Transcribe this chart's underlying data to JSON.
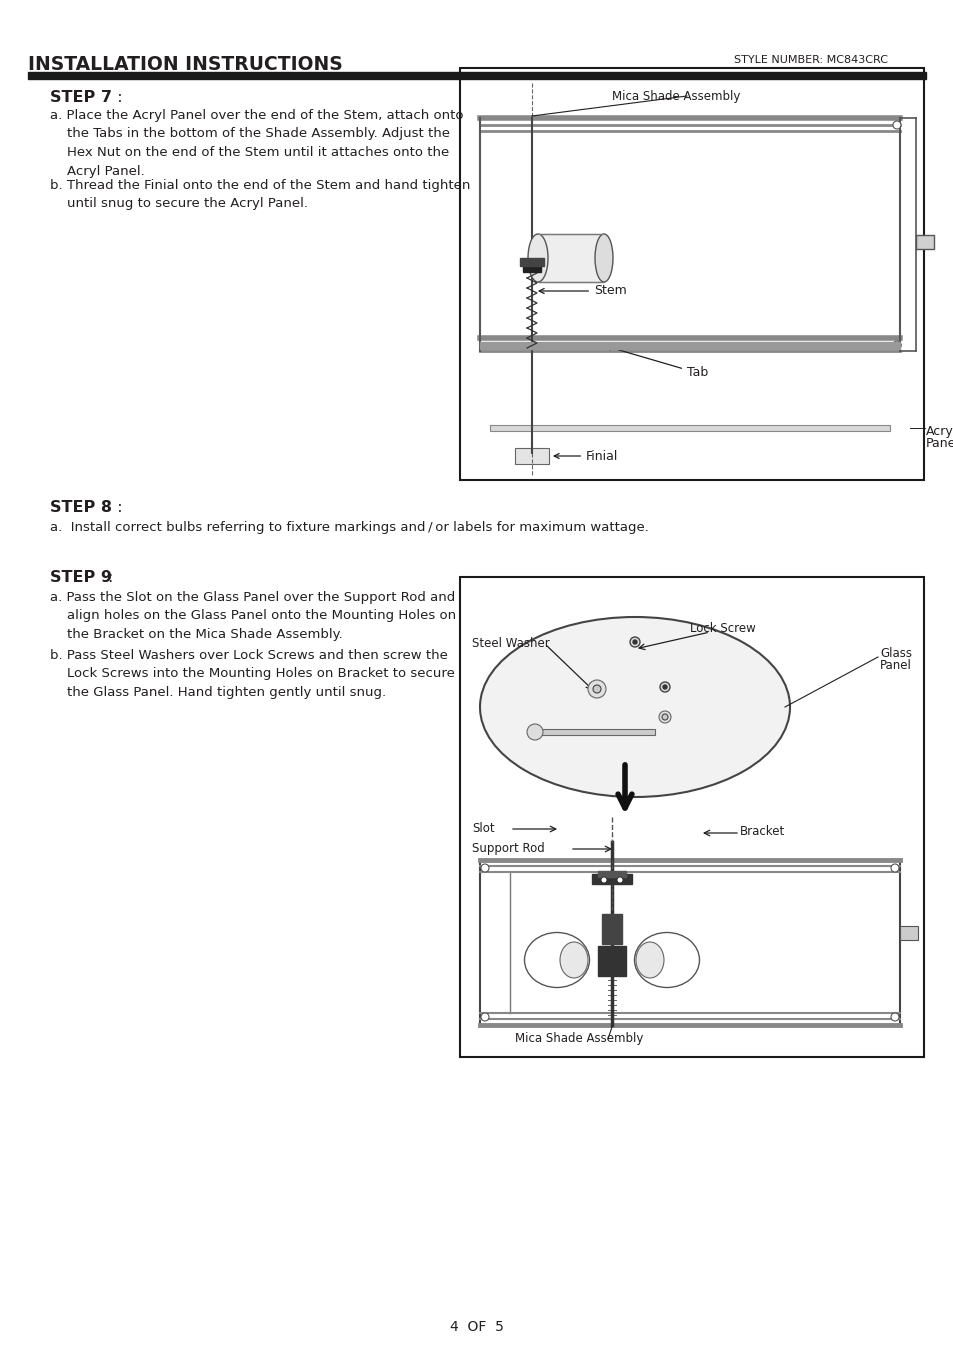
{
  "bg_color": "#ffffff",
  "text_color": "#231f20",
  "title": "INSTALLATION INSTRUCTIONS",
  "style_number": "STYLE NUMBER: MC843CRC",
  "page_footer": "4  OF  5",
  "step7_heading": "STEP 7",
  "step8_heading": "STEP 8",
  "step9_heading": "STEP 9"
}
